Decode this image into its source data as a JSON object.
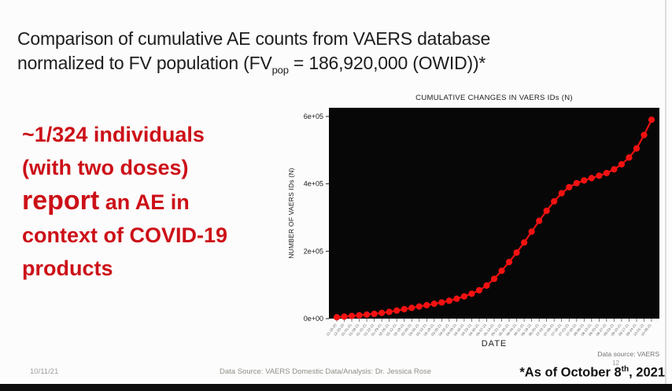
{
  "slide": {
    "title_line1": "Comparison of cumulative AE counts from VAERS database",
    "title_line2_pre": "normalized to FV population (FV",
    "title_line2_sub": "pop",
    "title_line2_post": " = 186,920,000 (OWID))*",
    "callout": {
      "line1": "~1/324 individuals",
      "line2": "(with two doses)",
      "line3_emphasis": "report",
      "line3_rest": " an AE in",
      "line4": "context of COVID-19",
      "line5": "products",
      "color": "#cc1018"
    },
    "footer": {
      "date": "10/11/21",
      "center": "Data Source: VAERS Domestic Data/Analysis: Dr. Jessica Rose",
      "page_number": "12",
      "asof_pre": "*As of October 8",
      "asof_sup": "th",
      "asof_post": ", 2021"
    }
  },
  "chart_data": {
    "type": "line",
    "title": "CUMULATIVE CHANGES IN VAERS IDs (N)",
    "xlabel": "DATE",
    "ylabel": "NUMBER OF VAERS IDs (N)",
    "source_note": "Data source: VAERS",
    "legend": "none",
    "grid": false,
    "background": "#070707",
    "point_color": "#f31111",
    "line_color": "#e81010",
    "ylim": [
      0,
      600000
    ],
    "yticks": [
      {
        "label": "0e+00",
        "value": 0
      },
      {
        "label": "2e+05",
        "value": 200000
      },
      {
        "label": "4e+05",
        "value": 400000
      },
      {
        "label": "6e+05",
        "value": 600000
      }
    ],
    "x": [
      "12-18-20",
      "12-25-20",
      "01-01-21",
      "01-08-21",
      "01-15-21",
      "01-22-21",
      "01-29-21",
      "02-05-21",
      "02-12-21",
      "02-19-21",
      "02-26-21",
      "03-05-21",
      "03-12-21",
      "03-19-21",
      "03-26-21",
      "04-02-21",
      "04-09-21",
      "04-16-21",
      "04-23-21",
      "04-30-21",
      "05-07-21",
      "05-14-21",
      "05-21-21",
      "05-28-21",
      "06-04-21",
      "06-11-21",
      "06-18-21",
      "06-25-21",
      "07-02-21",
      "07-09-21",
      "07-16-21",
      "07-23-21",
      "07-30-21",
      "08-06-21",
      "08-13-21",
      "08-20-21",
      "08-27-21",
      "09-03-21",
      "09-10-21",
      "09-17-21",
      "09-24-21",
      "10-01-21",
      "10-08-21"
    ],
    "values": [
      4000,
      6000,
      8000,
      10000,
      12000,
      14000,
      17000,
      20000,
      24000,
      28000,
      32000,
      36000,
      40000,
      44000,
      48000,
      53000,
      59000,
      66000,
      74000,
      84000,
      98000,
      118000,
      142000,
      168000,
      196000,
      226000,
      258000,
      290000,
      320000,
      348000,
      372000,
      390000,
      402000,
      410000,
      417000,
      424000,
      432000,
      443000,
      458000,
      478000,
      505000,
      545000,
      590000
    ]
  }
}
